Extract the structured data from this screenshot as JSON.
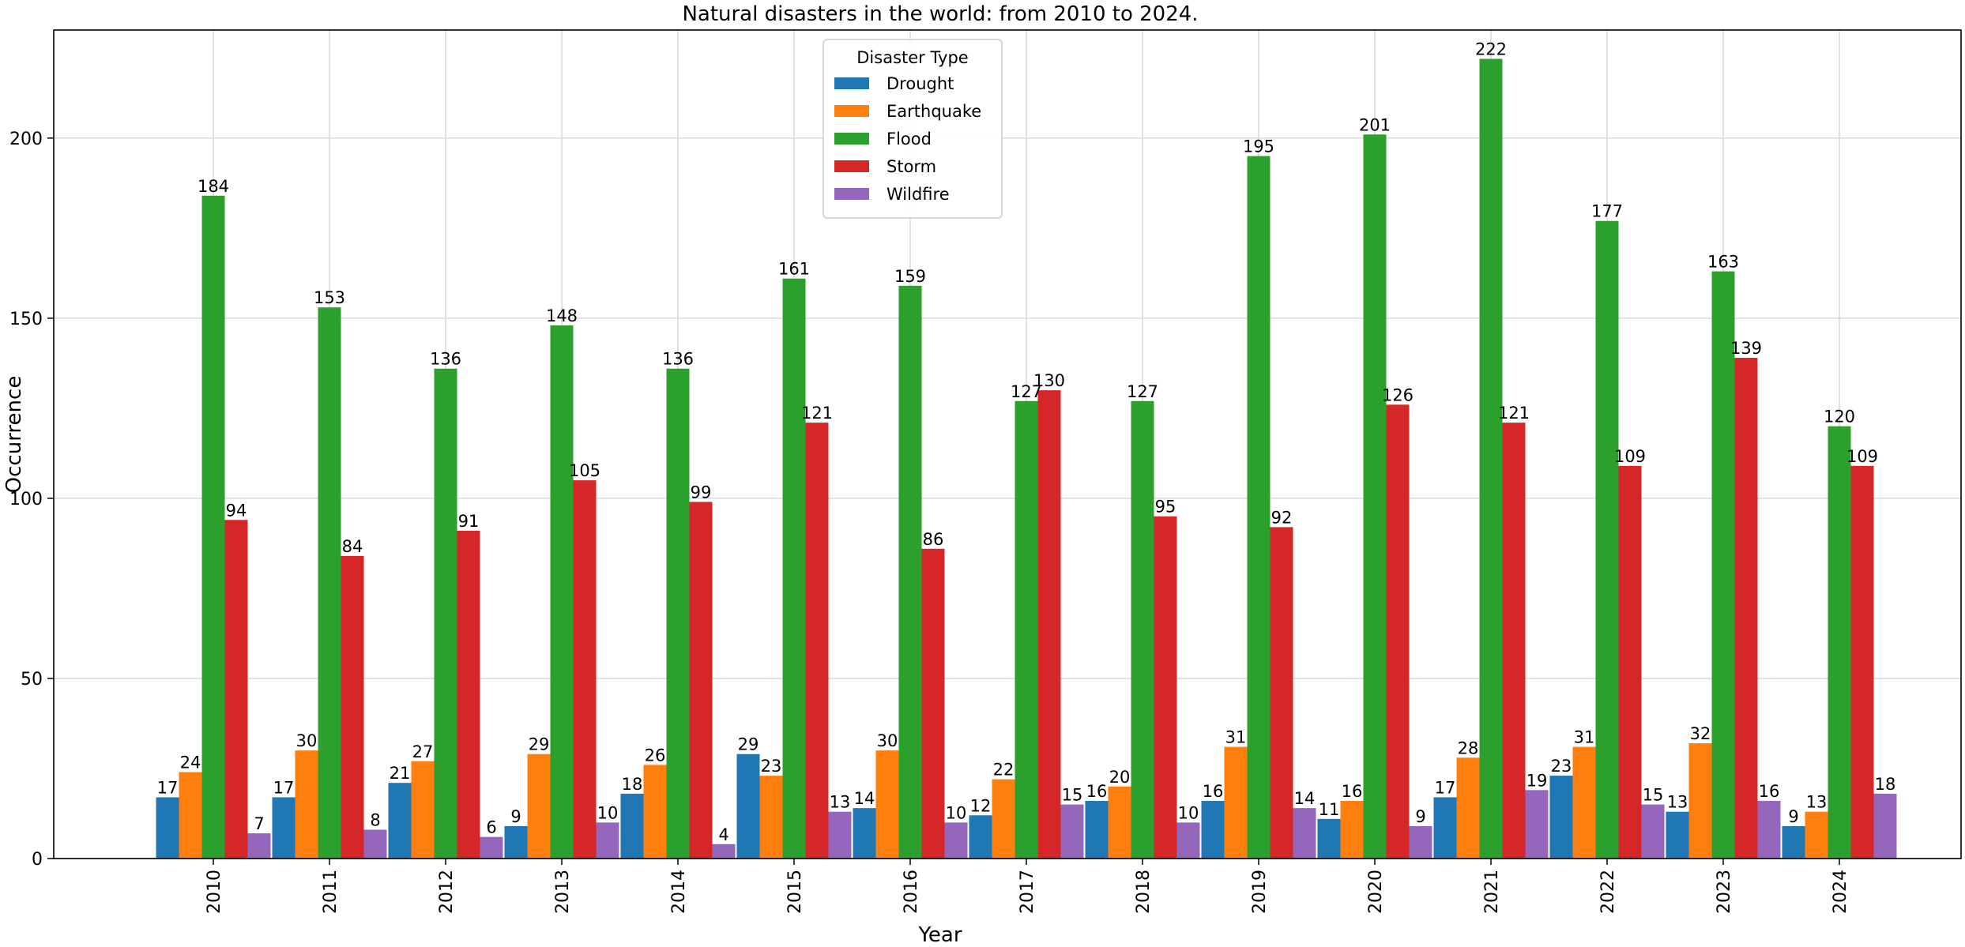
{
  "chart_data": {
    "type": "bar",
    "title": "Natural disasters in the world: from 2010 to 2024.",
    "xlabel": "Year",
    "ylabel": "Occurrence",
    "ylim": [
      0,
      230
    ],
    "yticks": [
      0,
      50,
      100,
      150,
      200
    ],
    "grid": true,
    "categories": [
      "2010",
      "2011",
      "2012",
      "2013",
      "2014",
      "2015",
      "2016",
      "2017",
      "2018",
      "2019",
      "2020",
      "2021",
      "2022",
      "2023",
      "2024"
    ],
    "legend": {
      "title": "Disaster Type",
      "placement": "upper-center"
    },
    "series": [
      {
        "name": "Drought",
        "color": "#1f77b4",
        "values": [
          17,
          17,
          21,
          9,
          18,
          29,
          14,
          12,
          16,
          16,
          11,
          17,
          23,
          13,
          9
        ]
      },
      {
        "name": "Earthquake",
        "color": "#ff7f0e",
        "values": [
          24,
          30,
          27,
          29,
          26,
          23,
          30,
          22,
          20,
          31,
          16,
          28,
          31,
          32,
          13
        ]
      },
      {
        "name": "Flood",
        "color": "#2ca02c",
        "values": [
          184,
          153,
          136,
          148,
          136,
          161,
          159,
          127,
          127,
          195,
          201,
          222,
          177,
          163,
          120
        ]
      },
      {
        "name": "Storm",
        "color": "#d62728",
        "values": [
          94,
          84,
          91,
          105,
          99,
          121,
          86,
          130,
          95,
          92,
          126,
          121,
          109,
          139,
          109
        ]
      },
      {
        "name": "Wildfire",
        "color": "#9467bd",
        "values": [
          7,
          8,
          6,
          10,
          4,
          13,
          10,
          15,
          10,
          14,
          9,
          19,
          15,
          16,
          18
        ]
      }
    ]
  }
}
